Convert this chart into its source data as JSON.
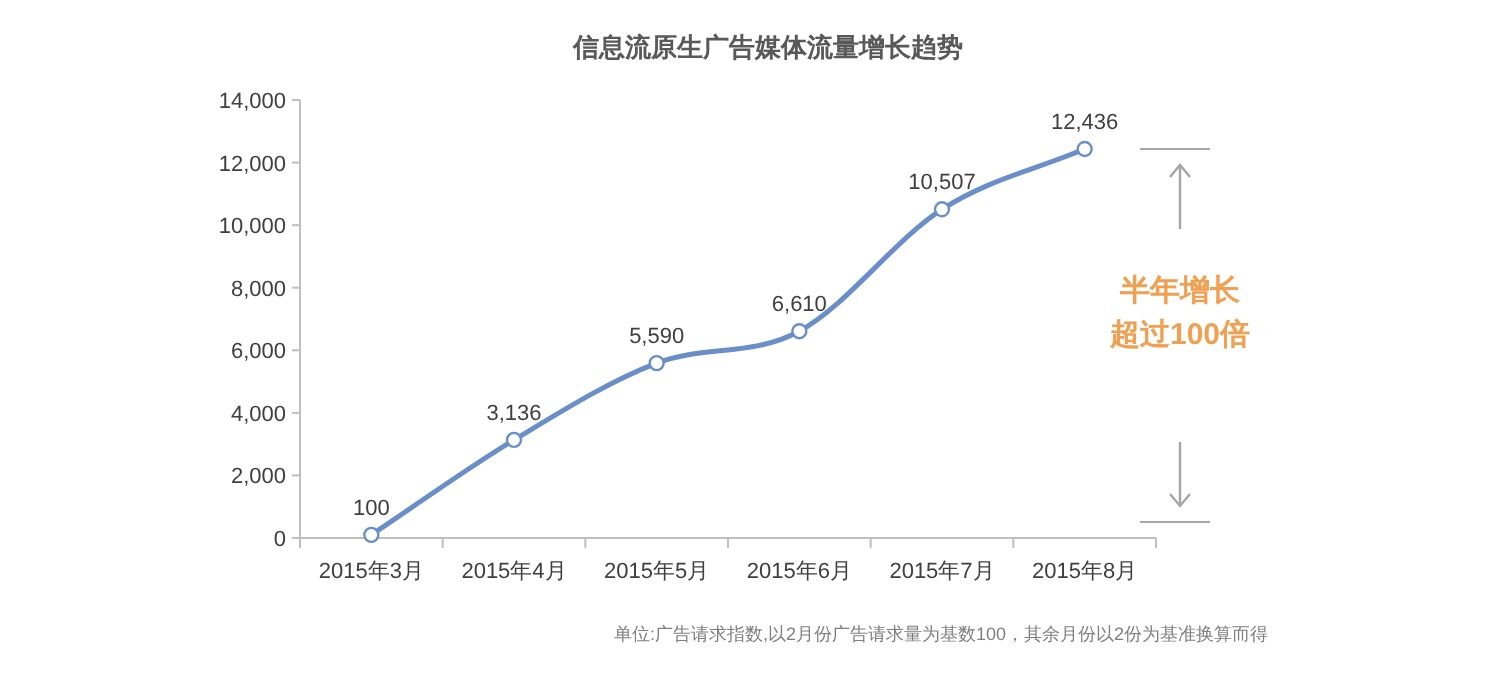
{
  "chart_data": {
    "type": "line",
    "title": "信息流原生广告媒体流量增长趋势",
    "categories": [
      "2015年3月",
      "2015年4月",
      "2015年5月",
      "2015年6月",
      "2015年7月",
      "2015年8月"
    ],
    "series": [
      {
        "color": "#6a8fc8",
        "values": [
          100,
          3136,
          5590,
          6610,
          10507,
          12436
        ],
        "value_labels": [
          "100",
          "3,136",
          "5,590",
          "6,610",
          "10,507",
          "12,436"
        ]
      }
    ],
    "ylim": [
      0,
      14000
    ],
    "yticks": [
      {
        "value": 0,
        "label": "0"
      },
      {
        "value": 2000,
        "label": "2,000"
      },
      {
        "value": 4000,
        "label": "4,000"
      },
      {
        "value": 6000,
        "label": "6,000"
      },
      {
        "value": 8000,
        "label": "8,000"
      },
      {
        "value": 10000,
        "label": "10,000"
      },
      {
        "value": 12000,
        "label": "12,000"
      },
      {
        "value": 14000,
        "label": "14,000"
      }
    ],
    "marker": "circle",
    "grid": false,
    "annotations": [
      "半年增长",
      "超过100倍",
      "单位:广告请求指数,以2月份广告请求量为基数100，其余月份以2份为基准换算而得"
    ]
  }
}
